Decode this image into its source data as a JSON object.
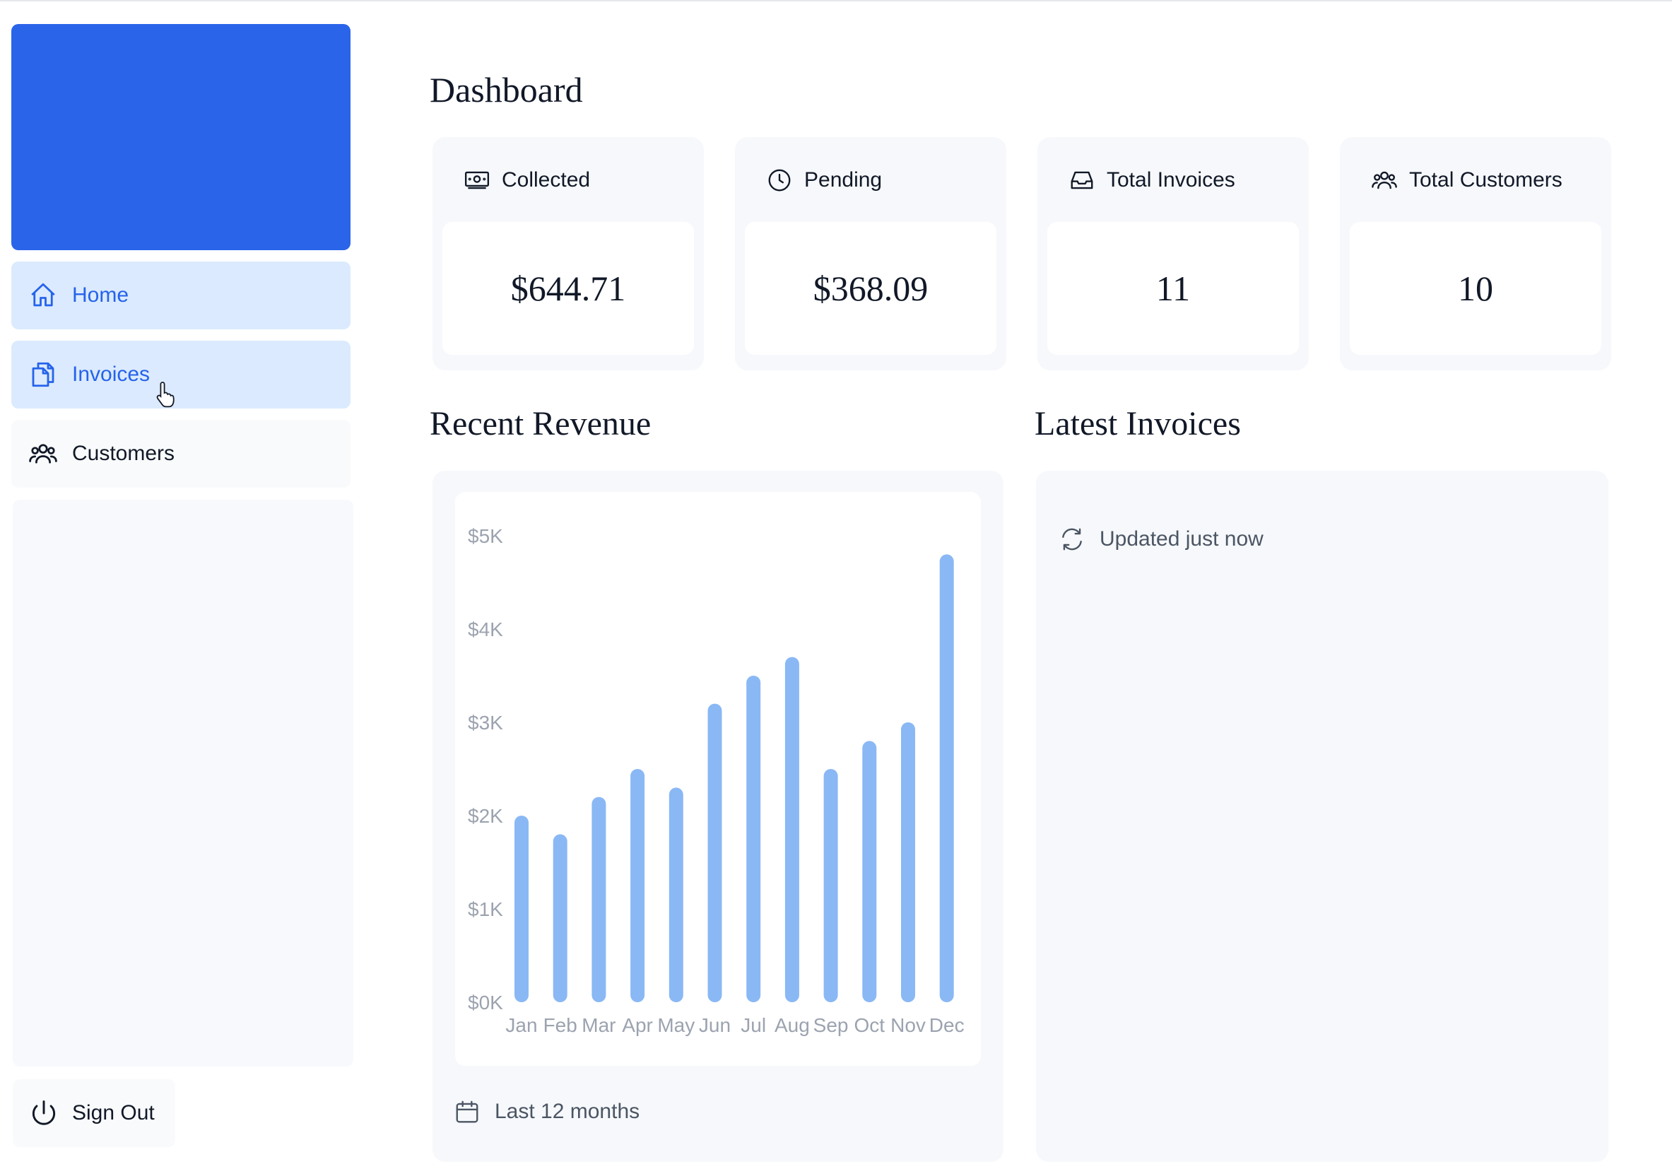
{
  "sidebar": {
    "items": [
      {
        "label": "Home",
        "icon": "home-icon",
        "active": true
      },
      {
        "label": "Invoices",
        "icon": "document-duplicate-icon",
        "active": true
      },
      {
        "label": "Customers",
        "icon": "user-group-icon",
        "active": false
      }
    ],
    "signout_label": "Sign Out",
    "logo_color": "#2a64e9"
  },
  "main": {
    "title": "Dashboard",
    "cards": [
      {
        "label": "Collected",
        "value": "$644.71",
        "icon": "banknotes-icon"
      },
      {
        "label": "Pending",
        "value": "$368.09",
        "icon": "clock-icon"
      },
      {
        "label": "Total Invoices",
        "value": "11",
        "icon": "inbox-icon"
      },
      {
        "label": "Total Customers",
        "value": "10",
        "icon": "user-group-icon"
      }
    ],
    "revenue": {
      "title": "Recent Revenue",
      "footer": "Last 12 months"
    },
    "latest": {
      "title": "Latest Invoices",
      "updated": "Updated just now"
    }
  },
  "chart_data": {
    "type": "bar",
    "categories": [
      "Jan",
      "Feb",
      "Mar",
      "Apr",
      "May",
      "Jun",
      "Jul",
      "Aug",
      "Sep",
      "Oct",
      "Nov",
      "Dec"
    ],
    "values": [
      2000,
      1800,
      2200,
      2500,
      2300,
      3200,
      3500,
      3700,
      2500,
      2800,
      3000,
      4800
    ],
    "yticks": [
      "$5K",
      "$4K",
      "$3K",
      "$2K",
      "$1K",
      "$0K"
    ],
    "ylim": [
      0,
      5000
    ],
    "bar_color": "#8ab8f5",
    "grid": false,
    "xlabel": "",
    "ylabel": ""
  }
}
